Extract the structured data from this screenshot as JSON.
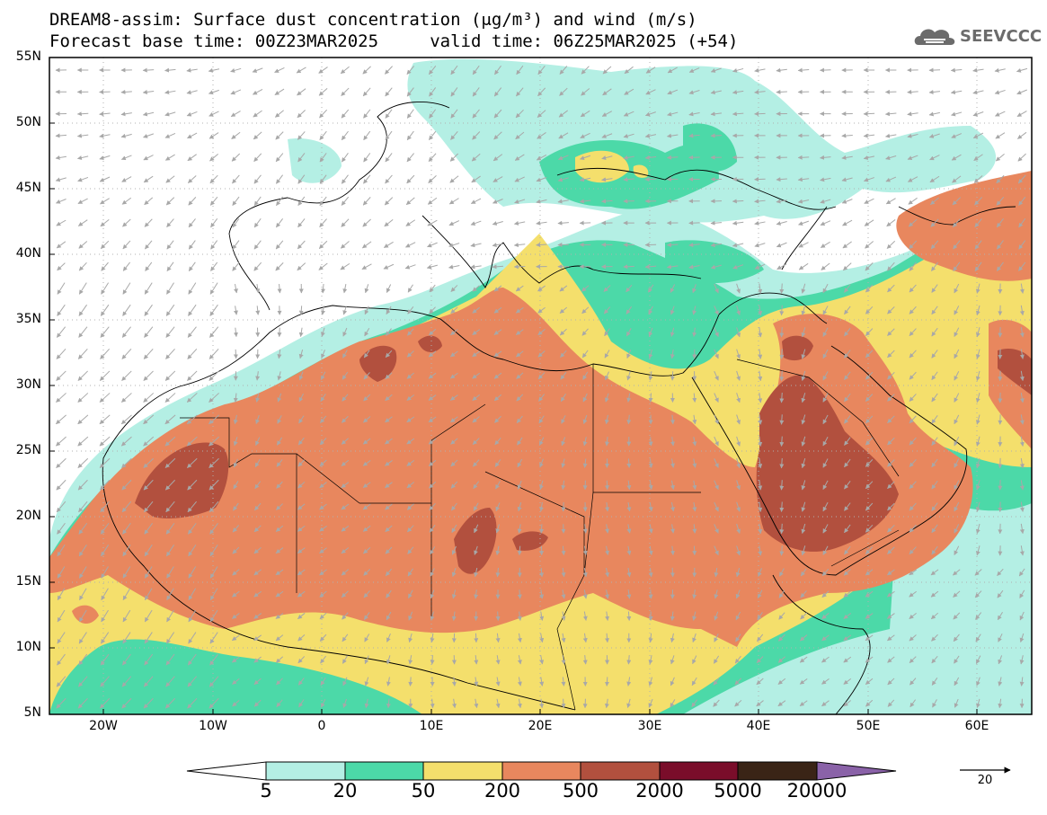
{
  "title_line1": "DREAM8-assim: Surface dust concentration (μg/m³) and wind (m/s)",
  "title_line2": "Forecast base time: 00Z23MAR2025     valid time: 06Z25MAR2025 (+54)",
  "logo_text": "SEEVCCC",
  "map": {
    "lon_range": [
      -25,
      65
    ],
    "lat_range": [
      5,
      55
    ],
    "lat_labels": [
      "55N",
      "50N",
      "45N",
      "40N",
      "35N",
      "30N",
      "25N",
      "20N",
      "15N",
      "10N",
      "5N"
    ],
    "lon_labels": [
      "20W",
      "10W",
      "0",
      "10E",
      "20E",
      "30E",
      "40E",
      "50E",
      "60E"
    ],
    "gridlines": "dotted"
  },
  "colorbar": {
    "levels": [
      "5",
      "20",
      "50",
      "200",
      "500",
      "2000",
      "5000",
      "20000"
    ],
    "colors": [
      "#b4efe4",
      "#4cd9a8",
      "#f4df6c",
      "#e8875e",
      "#b2503e",
      "#7a0d2a",
      "#3a2416",
      "#8a62a8"
    ],
    "below_color": "#ffffff"
  },
  "wind_reference": {
    "value": "20",
    "color": "#000000"
  },
  "vector_color": "#a8a8a8"
}
